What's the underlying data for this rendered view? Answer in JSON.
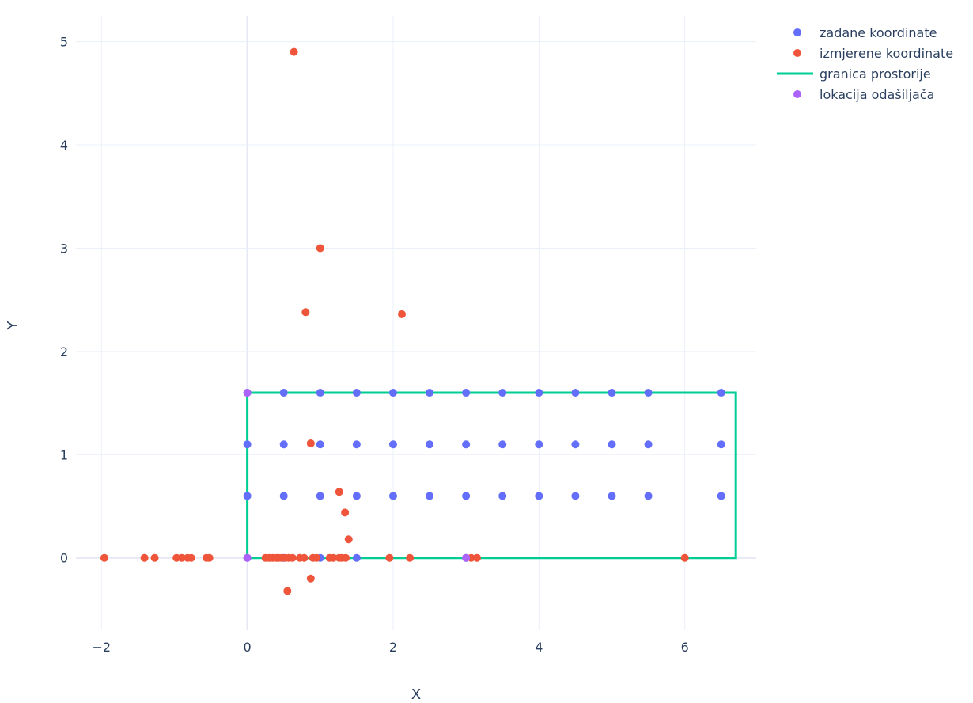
{
  "chart_data": {
    "type": "scatter",
    "title": "",
    "xlabel": "X",
    "ylabel": "Y",
    "xlim": [
      -2.35,
      6.98
    ],
    "ylim": [
      -0.7,
      5.25
    ],
    "xticks": [
      -2,
      0,
      2,
      4,
      6
    ],
    "xtick_labels": [
      "−2",
      "0",
      "2",
      "4",
      "6"
    ],
    "yticks": [
      0,
      1,
      2,
      3,
      4,
      5
    ],
    "ytick_labels": [
      "0",
      "1",
      "2",
      "3",
      "4",
      "5"
    ],
    "grid": true,
    "legend_position": "top-right",
    "series": [
      {
        "name": "zadane koordinate",
        "mode": "markers",
        "color": "#636efa",
        "points": [
          [
            0,
            1.6
          ],
          [
            0.5,
            1.6
          ],
          [
            1,
            1.6
          ],
          [
            1.5,
            1.6
          ],
          [
            2,
            1.6
          ],
          [
            2.5,
            1.6
          ],
          [
            3,
            1.6
          ],
          [
            3.5,
            1.6
          ],
          [
            4,
            1.6
          ],
          [
            4.5,
            1.6
          ],
          [
            5,
            1.6
          ],
          [
            5.5,
            1.6
          ],
          [
            6.5,
            1.6
          ],
          [
            0,
            1.1
          ],
          [
            0.5,
            1.1
          ],
          [
            1,
            1.1
          ],
          [
            1.5,
            1.1
          ],
          [
            2,
            1.1
          ],
          [
            2.5,
            1.1
          ],
          [
            3,
            1.1
          ],
          [
            3.5,
            1.1
          ],
          [
            4,
            1.1
          ],
          [
            4.5,
            1.1
          ],
          [
            5,
            1.1
          ],
          [
            5.5,
            1.1
          ],
          [
            6.5,
            1.1
          ],
          [
            0,
            0.6
          ],
          [
            0.5,
            0.6
          ],
          [
            1,
            0.6
          ],
          [
            1.5,
            0.6
          ],
          [
            2,
            0.6
          ],
          [
            2.5,
            0.6
          ],
          [
            3,
            0.6
          ],
          [
            3.5,
            0.6
          ],
          [
            4,
            0.6
          ],
          [
            4.5,
            0.6
          ],
          [
            5,
            0.6
          ],
          [
            5.5,
            0.6
          ],
          [
            6.5,
            0.6
          ],
          [
            0,
            0
          ],
          [
            0.5,
            0
          ],
          [
            1,
            0
          ],
          [
            1.5,
            0
          ],
          [
            3,
            0
          ]
        ]
      },
      {
        "name": "izmjerene koordinate",
        "mode": "markers",
        "color": "#ef553b",
        "points": [
          [
            0.64,
            4.9
          ],
          [
            1.0,
            3.0
          ],
          [
            0.8,
            2.38
          ],
          [
            2.12,
            2.36
          ],
          [
            0.87,
            1.11
          ],
          [
            1.26,
            0.64
          ],
          [
            1.34,
            0.44
          ],
          [
            1.39,
            0.18
          ],
          [
            0.55,
            -0.32
          ],
          [
            0.87,
            -0.2
          ],
          [
            -1.96,
            0
          ],
          [
            -1.41,
            0
          ],
          [
            -1.27,
            0
          ],
          [
            -0.97,
            0
          ],
          [
            -0.9,
            0
          ],
          [
            -0.82,
            0
          ],
          [
            -0.77,
            0
          ],
          [
            -0.56,
            0
          ],
          [
            -0.52,
            0
          ],
          [
            0.25,
            0
          ],
          [
            0.3,
            0
          ],
          [
            0.35,
            0
          ],
          [
            0.4,
            0
          ],
          [
            0.43,
            0
          ],
          [
            0.47,
            0
          ],
          [
            0.52,
            0
          ],
          [
            0.57,
            0
          ],
          [
            0.62,
            0
          ],
          [
            0.72,
            0
          ],
          [
            0.78,
            0
          ],
          [
            0.9,
            0
          ],
          [
            0.95,
            0
          ],
          [
            1.13,
            0
          ],
          [
            1.18,
            0
          ],
          [
            1.26,
            0
          ],
          [
            1.3,
            0
          ],
          [
            1.35,
            0
          ],
          [
            1.95,
            0
          ],
          [
            2.23,
            0
          ],
          [
            3.07,
            0
          ],
          [
            3.15,
            0
          ],
          [
            6.0,
            0
          ]
        ]
      },
      {
        "name": "granica prostorije",
        "mode": "lines",
        "color": "#00cc96",
        "points": [
          [
            0,
            0
          ],
          [
            6.7,
            0
          ],
          [
            6.7,
            1.6
          ],
          [
            0,
            1.6
          ],
          [
            0,
            0
          ]
        ]
      },
      {
        "name": "lokacija odašiljača",
        "mode": "markers",
        "color": "#ab63fa",
        "points": [
          [
            0,
            1.6
          ],
          [
            0,
            0
          ],
          [
            3,
            0
          ]
        ]
      }
    ],
    "grid_color": "#ebf0f8",
    "zero_line_color": "#e5e7f4",
    "text_color": "#2a3f5f"
  }
}
